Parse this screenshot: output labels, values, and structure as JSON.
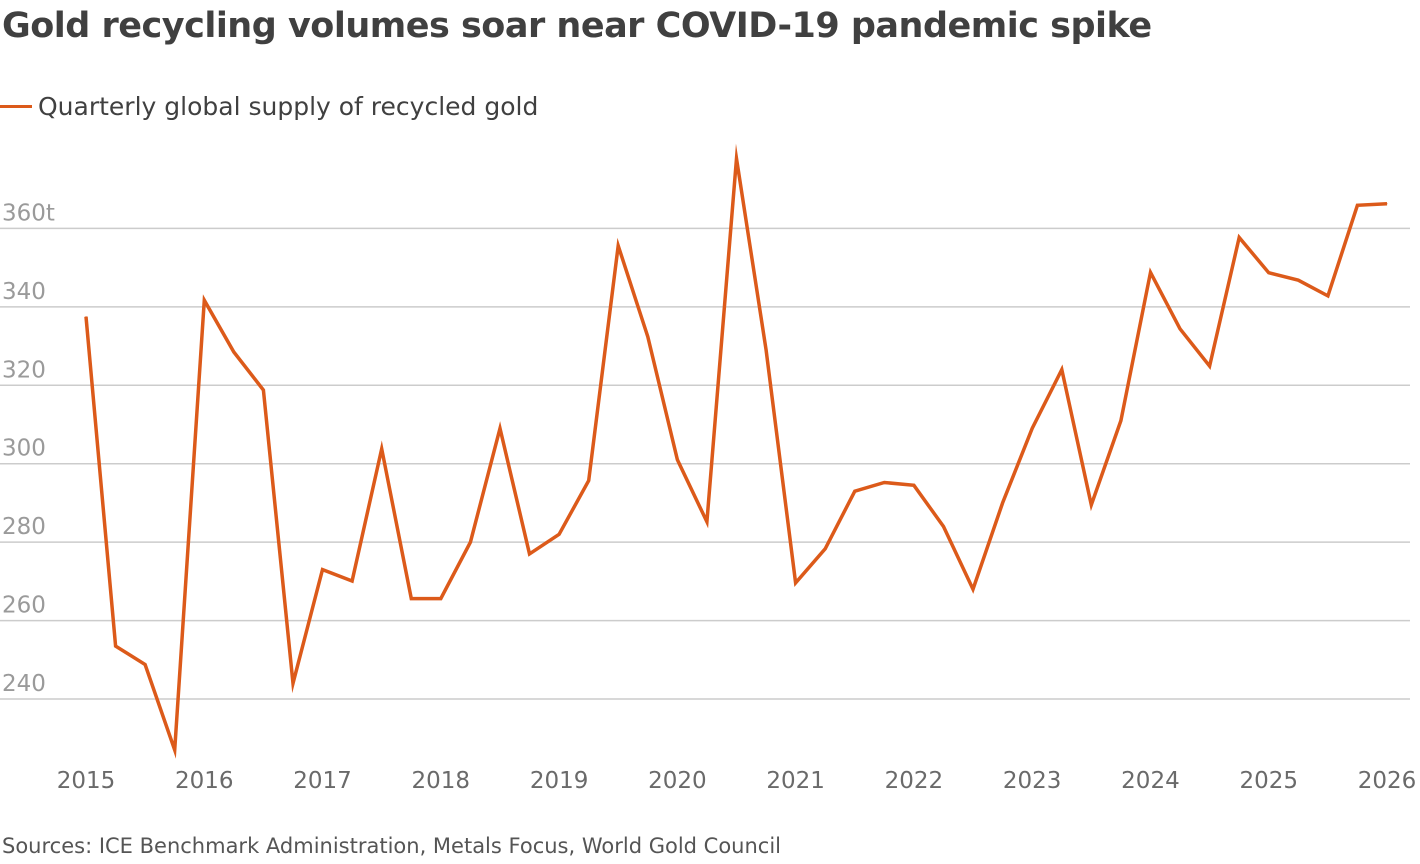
{
  "title": "Gold recycling volumes soar near COVID-19 pandemic spike",
  "source": "Sources: ICE Benchmark Administration, Metals Focus, World Gold Council",
  "colors": {
    "series": "#dc5a1a",
    "grid": "#cccccc",
    "text": "#404040"
  },
  "chart_data": {
    "type": "line",
    "title": "Gold recycling volumes soar near COVID-19 pandemic spike",
    "xlabel": "",
    "ylabel": "",
    "y_unit_suffix": "t",
    "xlim": [
      2015,
      2026
    ],
    "ylim": [
      227,
      380
    ],
    "x_ticks": [
      2015,
      2016,
      2017,
      2018,
      2019,
      2020,
      2021,
      2022,
      2023,
      2024,
      2025,
      2026
    ],
    "y_ticks": [
      {
        "value": 240,
        "label": "240"
      },
      {
        "value": 260,
        "label": "260"
      },
      {
        "value": 280,
        "label": "280"
      },
      {
        "value": 300,
        "label": "300"
      },
      {
        "value": 320,
        "label": "320"
      },
      {
        "value": 340,
        "label": "340"
      },
      {
        "value": 360,
        "label": "360t"
      }
    ],
    "grid": "horizontal",
    "legend_position": "top-left",
    "series": [
      {
        "name": "Quarterly global supply of recycled gold",
        "color": "#dc5a1a",
        "x": [
          2015.0,
          2015.25,
          2015.5,
          2015.75,
          2016.0,
          2016.25,
          2016.5,
          2016.75,
          2017.0,
          2017.25,
          2017.5,
          2017.75,
          2018.0,
          2018.25,
          2018.5,
          2018.75,
          2019.0,
          2019.25,
          2019.5,
          2019.75,
          2020.0,
          2020.25,
          2020.5,
          2020.75,
          2021.0,
          2021.25,
          2021.5,
          2021.75,
          2022.0,
          2022.25,
          2022.5,
          2022.75,
          2023.0,
          2023.25,
          2023.5,
          2023.75,
          2024.0,
          2024.25,
          2024.5,
          2024.75,
          2025.0,
          2025.25,
          2025.5,
          2025.75,
          2026.0
        ],
        "y": [
          337.5,
          253.5,
          248.8,
          227.0,
          341.7,
          328.5,
          318.8,
          244.0,
          273.0,
          270.1,
          303.8,
          265.6,
          265.6,
          280.0,
          309.0,
          277.0,
          282.0,
          295.7,
          355.6,
          332.4,
          301.0,
          285.2,
          377.8,
          329.0,
          269.6,
          278.3,
          293.0,
          295.2,
          294.5,
          284.0,
          268.0,
          290.0,
          309.0,
          324.0,
          289.5,
          311.0,
          348.8,
          334.4,
          324.9,
          357.7,
          348.7,
          346.8,
          342.8,
          365.9,
          366.3
        ]
      }
    ]
  }
}
